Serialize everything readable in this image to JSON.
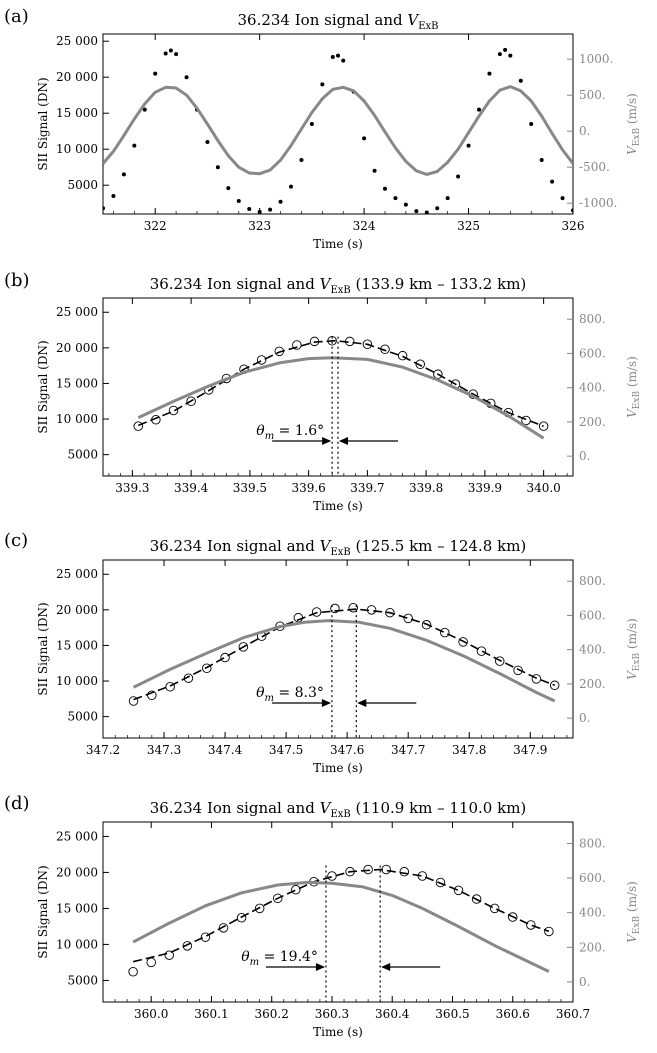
{
  "chart_data": [
    {
      "type": "scatter",
      "panel_label": "(a)",
      "title_prefix": "36.234 Ion signal and ",
      "title_var": "V",
      "title_sub": "ExB",
      "title_suffix": "",
      "xlabel": "Time (s)",
      "ylabel_left": "SII Signal (DN)",
      "ylabel_right_var": "V",
      "ylabel_right_sub": "ExB",
      "ylabel_right_unit": " (m/s)",
      "xlim": [
        321.5,
        326.0
      ],
      "ylim_left": [
        1000,
        26000
      ],
      "ylim_right": [
        -1150,
        1350
      ],
      "xticks": [
        322,
        323,
        324,
        325,
        326
      ],
      "xtick_labels": [
        "322",
        "323",
        "324",
        "325",
        "326"
      ],
      "yticks_left": [
        5000,
        10000,
        15000,
        20000,
        25000
      ],
      "ytick_labels_left": [
        "5000",
        "10 000",
        "15 000",
        "20 000",
        "25 000"
      ],
      "yticks_right": [
        -1000,
        -500,
        0,
        500,
        1000
      ],
      "ytick_labels_right": [
        "-1000.",
        "-500.",
        "0.",
        "500.",
        "1000."
      ],
      "marker": "dot",
      "series": [
        {
          "axis": "left",
          "style": "points",
          "color": "#000000",
          "x": [
            321.5,
            321.6,
            321.7,
            321.8,
            321.9,
            322.0,
            322.1,
            322.15,
            322.2,
            322.3,
            322.4,
            322.5,
            322.6,
            322.7,
            322.8,
            322.9,
            323.0,
            323.1,
            323.2,
            323.3,
            323.4,
            323.5,
            323.6,
            323.7,
            323.75,
            323.8,
            323.9,
            324.0,
            324.1,
            324.2,
            324.3,
            324.4,
            324.5,
            324.6,
            324.7,
            324.8,
            324.9,
            325.0,
            325.1,
            325.2,
            325.3,
            325.35,
            325.4,
            325.5,
            325.6,
            325.7,
            325.8,
            325.9,
            326.0
          ],
          "y": [
            1800,
            3500,
            6500,
            10500,
            15500,
            20500,
            23300,
            23700,
            23200,
            20000,
            15500,
            11000,
            7500,
            4600,
            2800,
            1700,
            1300,
            1600,
            2700,
            4800,
            8500,
            13500,
            19000,
            22800,
            23000,
            22300,
            18000,
            11500,
            7000,
            4500,
            3200,
            2300,
            1400,
            1200,
            1800,
            3200,
            6200,
            10500,
            15500,
            20500,
            23200,
            23800,
            23000,
            19500,
            13500,
            8500,
            5500,
            3200,
            1500
          ]
        },
        {
          "axis": "right",
          "style": "line",
          "color": "#888888",
          "x": [
            321.5,
            321.6,
            321.7,
            321.8,
            321.9,
            322.0,
            322.1,
            322.2,
            322.3,
            322.4,
            322.5,
            322.6,
            322.7,
            322.8,
            322.9,
            323.0,
            323.1,
            323.2,
            323.3,
            323.4,
            323.5,
            323.6,
            323.7,
            323.8,
            323.9,
            324.0,
            324.1,
            324.2,
            324.3,
            324.4,
            324.5,
            324.6,
            324.7,
            324.8,
            324.9,
            325.0,
            325.1,
            325.2,
            325.3,
            325.4,
            325.5,
            325.6,
            325.7,
            325.8,
            325.9,
            326.0
          ],
          "y": [
            -450,
            -280,
            -60,
            170,
            380,
            540,
            610,
            600,
            500,
            320,
            100,
            -130,
            -340,
            -500,
            -580,
            -590,
            -540,
            -400,
            -200,
            30,
            260,
            450,
            580,
            610,
            560,
            420,
            220,
            -10,
            -230,
            -420,
            -550,
            -600,
            -560,
            -430,
            -250,
            -20,
            210,
            420,
            570,
            620,
            560,
            420,
            210,
            -30,
            -260,
            -450
          ]
        }
      ],
      "annotation": null
    },
    {
      "type": "scatter",
      "panel_label": "(b)",
      "title_prefix": "36.234 Ion signal and ",
      "title_var": "V",
      "title_sub": "ExB",
      "title_suffix": " (133.9 km – 133.2 km)",
      "xlabel": "Time (s)",
      "ylabel_left": "SII Signal (DN)",
      "ylabel_right_var": "V",
      "ylabel_right_sub": "ExB",
      "ylabel_right_unit": " (m/s)",
      "xlim": [
        339.25,
        340.05
      ],
      "ylim_left": [
        2000,
        27000
      ],
      "ylim_right": [
        -116,
        924
      ],
      "xticks": [
        339.3,
        339.4,
        339.5,
        339.6,
        339.7,
        339.8,
        339.9,
        340.0
      ],
      "xtick_labels": [
        "339.3",
        "339.4",
        "339.5",
        "339.6",
        "339.7",
        "339.8",
        "339.9",
        "340.0"
      ],
      "yticks_left": [
        5000,
        10000,
        15000,
        20000,
        25000
      ],
      "ytick_labels_left": [
        "5000",
        "10 000",
        "15 000",
        "20 000",
        "25 000"
      ],
      "yticks_right": [
        0,
        200,
        400,
        600,
        800
      ],
      "ytick_labels_right": [
        "0.",
        "200.",
        "400.",
        "600.",
        "800."
      ],
      "marker": "circle",
      "series": [
        {
          "axis": "left",
          "style": "points",
          "color": "#000000",
          "x": [
            339.31,
            339.34,
            339.37,
            339.4,
            339.43,
            339.46,
            339.49,
            339.52,
            339.55,
            339.58,
            339.61,
            339.64,
            339.67,
            339.7,
            339.73,
            339.76,
            339.79,
            339.82,
            339.85,
            339.88,
            339.91,
            339.94,
            339.97,
            340.0
          ],
          "y": [
            9000,
            9900,
            11200,
            12500,
            14100,
            15700,
            17000,
            18300,
            19500,
            20400,
            20900,
            21000,
            20900,
            20500,
            19800,
            18900,
            17700,
            16300,
            14900,
            13500,
            12200,
            10900,
            9800,
            9000
          ]
        },
        {
          "axis": "left",
          "style": "dashed-fit",
          "color": "#000000",
          "x": [
            339.31,
            339.37,
            339.43,
            339.49,
            339.55,
            339.61,
            339.645,
            339.7,
            339.76,
            339.82,
            339.88,
            339.94,
            340.0
          ],
          "y": [
            9100,
            11100,
            14000,
            17000,
            19400,
            20800,
            21000,
            20500,
            18800,
            16300,
            13500,
            10900,
            9000
          ]
        },
        {
          "axis": "right",
          "style": "line",
          "color": "#888888",
          "x": [
            339.31,
            339.37,
            339.43,
            339.49,
            339.55,
            339.6,
            339.64,
            339.7,
            339.76,
            339.82,
            339.88,
            339.94,
            340.0
          ],
          "y": [
            225,
            320,
            410,
            490,
            545,
            570,
            575,
            565,
            520,
            445,
            350,
            235,
            105
          ]
        }
      ],
      "annotation": {
        "text_var": "θ",
        "text_sub": "m",
        "text_value": " = 1.6°",
        "x_left": 339.64,
        "x_right": 339.65
      }
    },
    {
      "type": "scatter",
      "panel_label": "(c)",
      "title_prefix": "36.234 Ion signal and ",
      "title_var": "V",
      "title_sub": "ExB",
      "title_suffix": " (125.5 km – 124.8 km)",
      "xlabel": "Time (s)",
      "ylabel_left": "SII Signal (DN)",
      "ylabel_right_var": "V",
      "ylabel_right_sub": "ExB",
      "ylabel_right_unit": " (m/s)",
      "xlim": [
        347.2,
        347.97
      ],
      "ylim_left": [
        2000,
        27000
      ],
      "ylim_right": [
        -116,
        924
      ],
      "xticks": [
        347.2,
        347.3,
        347.4,
        347.5,
        347.6,
        347.7,
        347.8,
        347.9
      ],
      "xtick_labels": [
        "347.2",
        "347.3",
        "347.4",
        "347.5",
        "347.6",
        "347.7",
        "347.8",
        "347.9"
      ],
      "yticks_left": [
        5000,
        10000,
        15000,
        20000,
        25000
      ],
      "ytick_labels_left": [
        "5000",
        "10 000",
        "15 000",
        "20 000",
        "25 000"
      ],
      "yticks_right": [
        0,
        200,
        400,
        600,
        800
      ],
      "ytick_labels_right": [
        "0.",
        "200.",
        "400.",
        "600.",
        "800."
      ],
      "marker": "circle",
      "series": [
        {
          "axis": "left",
          "style": "points",
          "color": "#000000",
          "x": [
            347.25,
            347.28,
            347.31,
            347.34,
            347.37,
            347.4,
            347.43,
            347.46,
            347.49,
            347.52,
            347.55,
            347.58,
            347.61,
            347.64,
            347.67,
            347.7,
            347.73,
            347.76,
            347.79,
            347.82,
            347.85,
            347.88,
            347.91,
            347.94
          ],
          "y": [
            7200,
            8000,
            9200,
            10400,
            11800,
            13300,
            14800,
            16300,
            17700,
            18900,
            19700,
            20200,
            20300,
            20000,
            19600,
            18800,
            17900,
            16800,
            15500,
            14200,
            12800,
            11500,
            10300,
            9400
          ]
        },
        {
          "axis": "left",
          "style": "dashed-fit",
          "color": "#000000",
          "x": [
            347.25,
            347.31,
            347.37,
            347.43,
            347.49,
            347.55,
            347.615,
            347.67,
            347.73,
            347.79,
            347.85,
            347.91,
            347.94
          ],
          "y": [
            7400,
            9300,
            11900,
            14800,
            17600,
            19600,
            20100,
            19600,
            18000,
            15600,
            12900,
            10400,
            9400
          ]
        },
        {
          "axis": "right",
          "style": "line",
          "color": "#888888",
          "x": [
            347.25,
            347.31,
            347.37,
            347.43,
            347.49,
            347.53,
            347.57,
            347.62,
            347.67,
            347.73,
            347.79,
            347.85,
            347.91,
            347.94
          ],
          "y": [
            180,
            285,
            380,
            470,
            535,
            560,
            570,
            560,
            525,
            455,
            365,
            260,
            150,
            100
          ]
        }
      ],
      "annotation": {
        "text_var": "θ",
        "text_sub": "m",
        "text_value": " = 8.3°",
        "x_left": 347.575,
        "x_right": 347.615
      }
    },
    {
      "type": "scatter",
      "panel_label": "(d)",
      "title_prefix": "36.234 Ion signal and ",
      "title_var": "V",
      "title_sub": "ExB",
      "title_suffix": " (110.9 km – 110.0 km)",
      "xlabel": "Time (s)",
      "ylabel_left": "SII Signal (DN)",
      "ylabel_right_var": "V",
      "ylabel_right_sub": "ExB",
      "ylabel_right_unit": " (m/s)",
      "xlim": [
        359.92,
        360.7
      ],
      "ylim_left": [
        2000,
        27000
      ],
      "ylim_right": [
        -116,
        924
      ],
      "xticks": [
        360.0,
        360.1,
        360.2,
        360.3,
        360.4,
        360.5,
        360.6,
        360.7
      ],
      "xtick_labels": [
        "360.0",
        "360.1",
        "360.2",
        "360.3",
        "360.4",
        "360.5",
        "360.6",
        "360.7"
      ],
      "yticks_left": [
        5000,
        10000,
        15000,
        20000,
        25000
      ],
      "ytick_labels_left": [
        "5000",
        "10 000",
        "15 000",
        "20 000",
        "25 000"
      ],
      "yticks_right": [
        0,
        200,
        400,
        600,
        800
      ],
      "ytick_labels_right": [
        "0.",
        "200.",
        "400.",
        "600.",
        "800."
      ],
      "marker": "circle",
      "series": [
        {
          "axis": "left",
          "style": "points",
          "color": "#000000",
          "x": [
            359.97,
            360.0,
            360.03,
            360.06,
            360.09,
            360.12,
            360.15,
            360.18,
            360.21,
            360.24,
            360.27,
            360.3,
            360.33,
            360.36,
            360.39,
            360.42,
            360.45,
            360.48,
            360.51,
            360.54,
            360.57,
            360.6,
            360.63,
            360.66
          ],
          "y": [
            6200,
            7500,
            8500,
            9800,
            11000,
            12300,
            13700,
            15000,
            16400,
            17600,
            18700,
            19500,
            20100,
            20400,
            20400,
            20100,
            19500,
            18600,
            17500,
            16300,
            15000,
            13800,
            12700,
            11800
          ]
        },
        {
          "axis": "left",
          "style": "dashed-fit",
          "color": "#000000",
          "x": [
            359.97,
            360.03,
            360.09,
            360.15,
            360.21,
            360.27,
            360.33,
            360.38,
            360.45,
            360.51,
            360.57,
            360.63,
            360.66
          ],
          "y": [
            7600,
            8800,
            11100,
            13800,
            16400,
            18700,
            20100,
            20400,
            19500,
            17500,
            15000,
            12700,
            11800
          ]
        },
        {
          "axis": "right",
          "style": "line",
          "color": "#888888",
          "x": [
            359.97,
            360.03,
            360.09,
            360.15,
            360.21,
            360.26,
            360.3,
            360.35,
            360.4,
            360.45,
            360.51,
            360.57,
            360.63,
            360.66
          ],
          "y": [
            230,
            340,
            440,
            515,
            560,
            575,
            570,
            550,
            500,
            425,
            320,
            210,
            110,
            60
          ]
        }
      ],
      "annotation": {
        "text_var": "θ",
        "text_sub": "m",
        "text_value": " = 19.4°",
        "x_left": 360.29,
        "x_right": 360.38
      }
    }
  ]
}
